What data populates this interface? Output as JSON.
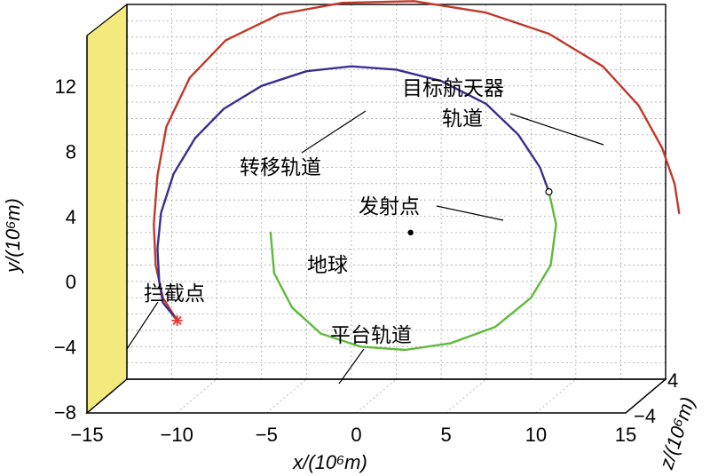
{
  "chart_data": {
    "type": "line",
    "view": "3d",
    "xlabel": "x/(10⁶m)",
    "ylabel": "y/(10⁶m)",
    "zlabel": "z/(10⁶m)",
    "xlim": [
      -15,
      15
    ],
    "ylim": [
      -8,
      15
    ],
    "x_ticks": [
      "−15",
      "−10",
      "−5",
      "0",
      "5",
      "10",
      "15"
    ],
    "y_ticks": [
      "−8",
      "−4",
      "0",
      "4",
      "8",
      "12"
    ],
    "z_ticks": [
      "−4",
      "4"
    ],
    "grid": true,
    "series": [
      {
        "name": "目标航天器轨道",
        "color": "#c0392b",
        "x": [
          15.75,
          15.5,
          14.8,
          13.5,
          11.5,
          8.5,
          5.0,
          1.0,
          -3.0,
          -6.5,
          -9.5,
          -11.5,
          -12.8,
          -13.3,
          -13.5,
          -13.4,
          -13.0,
          -12.2
        ],
        "y": [
          2.2,
          4.0,
          6.2,
          8.8,
          11.2,
          13.2,
          14.5,
          15.2,
          15.1,
          14.4,
          12.8,
          10.5,
          7.5,
          4.5,
          1.5,
          -1.0,
          -3.0,
          -4.4
        ]
      },
      {
        "name": "转移轨道",
        "color": "#3a2f8f",
        "x": [
          8.5,
          8.0,
          6.8,
          5.0,
          2.5,
          0.0,
          -2.5,
          -5.0,
          -7.5,
          -9.6,
          -11.2,
          -12.4,
          -13.1,
          -13.3,
          -13.2,
          -13.0,
          -12.2
        ],
        "y": [
          3.5,
          5.0,
          7.0,
          8.9,
          10.3,
          11.0,
          11.2,
          10.9,
          10.0,
          8.6,
          6.8,
          4.6,
          2.2,
          0.0,
          -2.0,
          -3.3,
          -4.4
        ]
      },
      {
        "name": "平台轨道",
        "color": "#5fba3c",
        "x": [
          8.5,
          8.9,
          8.6,
          7.5,
          5.5,
          3.0,
          0.5,
          -2.0,
          -4.2,
          -5.8,
          -6.8,
          -7.0
        ],
        "y": [
          3.5,
          1.5,
          -1.0,
          -3.0,
          -4.8,
          -5.8,
          -6.2,
          -6.0,
          -5.2,
          -3.6,
          -1.5,
          1.0
        ]
      }
    ],
    "points": [
      {
        "name": "发射点",
        "x": 8.5,
        "y": 3.5,
        "marker": "circle"
      },
      {
        "name": "拦截点",
        "x": -12.2,
        "y": -4.4,
        "marker": "star",
        "color": "#e53935"
      },
      {
        "name": "地球",
        "x": 0.8,
        "y": 1.0,
        "marker": "dot"
      }
    ],
    "annotations": {
      "target_orbit_line1": "目标航天器",
      "target_orbit_line2": "轨道",
      "transfer_orbit": "转移轨道",
      "launch_point": "发射点",
      "earth": "地球",
      "intercept_point": "拦截点",
      "platform_orbit": "平台轨道"
    },
    "side_wall_color": "#f2ea7d"
  }
}
